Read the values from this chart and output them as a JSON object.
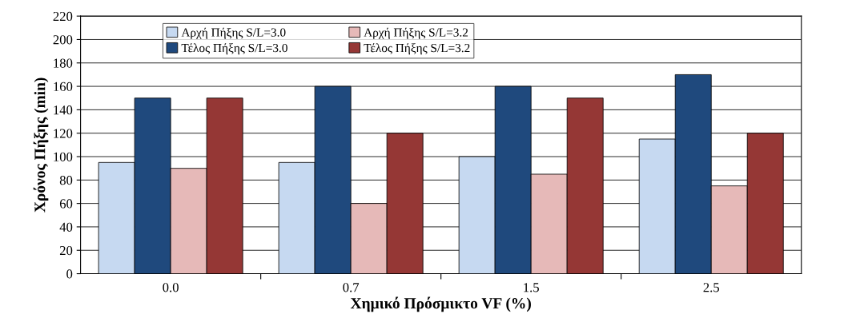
{
  "chart_data": {
    "type": "bar",
    "xlabel": "Χημικό Πρόσμικτο VF (%)",
    "ylabel": "Χρόνος Πήξης (min)",
    "categories": [
      "0.0",
      "0.7",
      "1.5",
      "2.5"
    ],
    "series": [
      {
        "name": "Αρχή Πήξης S/L=3.0",
        "color": "#c6d9f1",
        "values": [
          95,
          95,
          100,
          115
        ]
      },
      {
        "name": "Τέλος Πήξης S/L=3.0",
        "color": "#1f497d",
        "values": [
          150,
          160,
          160,
          170
        ]
      },
      {
        "name": "Αρχή Πήξης S/L=3.2",
        "color": "#e6b9b8",
        "values": [
          90,
          60,
          85,
          75
        ]
      },
      {
        "name": "Τέλος Πήξης S/L=3.2",
        "color": "#953735",
        "values": [
          150,
          120,
          150,
          120
        ]
      }
    ],
    "ylim": [
      0,
      220
    ],
    "yticks": [
      0,
      20,
      40,
      60,
      80,
      100,
      120,
      140,
      160,
      180,
      200,
      220
    ],
    "grid": "y",
    "legend": "top"
  }
}
